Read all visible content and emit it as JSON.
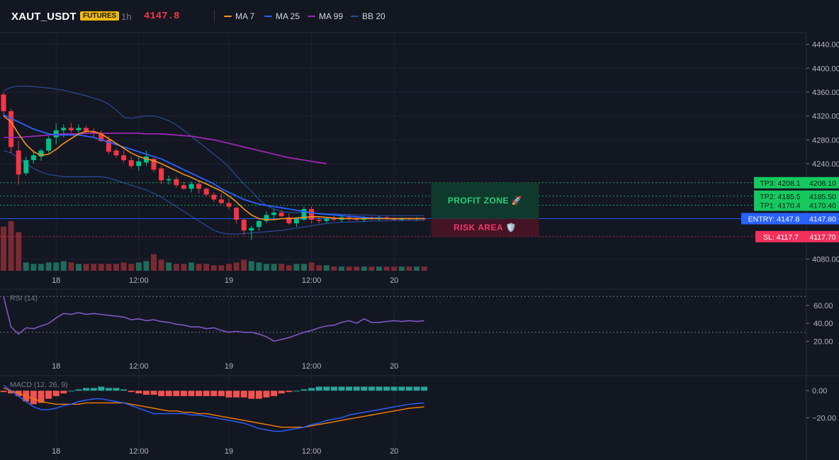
{
  "header": {
    "symbol": "XAUT_USDT",
    "badge": "FUTURES",
    "timeframe": "1h",
    "price": "4147.8",
    "legend": [
      {
        "label": "MA 7",
        "color": "#f7931a"
      },
      {
        "label": "MA 25",
        "color": "#2962ff"
      },
      {
        "label": "MA 99",
        "color": "#9c27b0"
      },
      {
        "label": "BB 20",
        "color": "#2a4a9a"
      }
    ]
  },
  "colors": {
    "up": "#00c087",
    "down": "#f23645",
    "volume_up": "#1e6b5b",
    "volume_down": "#7a2a33",
    "ma7": "#f7931a",
    "ma25": "#2962ff",
    "ma99": "#9c27b0",
    "bb": "#2a4a9a",
    "tp": "#00e676",
    "entry": "#2962ff",
    "sl": "#f23645",
    "rsi": "#7e57c2",
    "macd_line": "#2962ff",
    "signal_line": "#f57c00",
    "hist_pos": "#26a69a",
    "hist_neg": "#ef5350"
  },
  "chart_data": [
    {
      "type": "candlestick",
      "title": "",
      "y_axis_ticks": [
        "4440.00",
        "4400.00",
        "4360.00",
        "4320.00",
        "4280.00",
        "4240.00",
        "4080.00"
      ],
      "ylim": [
        4070,
        4455
      ],
      "x_tick_labels": [
        "18",
        "12:00",
        "19",
        "12:00",
        "20"
      ],
      "candles": [
        [
          4356,
          4360,
          4320,
          4328
        ],
        [
          4328,
          4332,
          4258,
          4268
        ],
        [
          4262,
          4278,
          4205,
          4222
        ],
        [
          4224,
          4252,
          4220,
          4246
        ],
        [
          4246,
          4262,
          4240,
          4254
        ],
        [
          4252,
          4265,
          4245,
          4262
        ],
        [
          4262,
          4286,
          4258,
          4282
        ],
        [
          4284,
          4308,
          4272,
          4296
        ],
        [
          4296,
          4306,
          4284,
          4300
        ],
        [
          4300,
          4308,
          4292,
          4296
        ],
        [
          4296,
          4306,
          4290,
          4300
        ],
        [
          4300,
          4304,
          4292,
          4294
        ],
        [
          4294,
          4300,
          4284,
          4290
        ],
        [
          4290,
          4296,
          4276,
          4278
        ],
        [
          4280,
          4286,
          4256,
          4260
        ],
        [
          4262,
          4266,
          4250,
          4254
        ],
        [
          4254,
          4262,
          4242,
          4246
        ],
        [
          4246,
          4252,
          4232,
          4236
        ],
        [
          4236,
          4252,
          4228,
          4244
        ],
        [
          4242,
          4262,
          4236,
          4252
        ],
        [
          4248,
          4250,
          4226,
          4230
        ],
        [
          4232,
          4236,
          4206,
          4212
        ],
        [
          4212,
          4220,
          4205,
          4214
        ],
        [
          4214,
          4218,
          4200,
          4204
        ],
        [
          4204,
          4210,
          4196,
          4198
        ],
        [
          4198,
          4210,
          4192,
          4206
        ],
        [
          4206,
          4210,
          4190,
          4198
        ],
        [
          4198,
          4200,
          4186,
          4188
        ],
        [
          4188,
          4192,
          4176,
          4180
        ],
        [
          4180,
          4190,
          4172,
          4174
        ],
        [
          4174,
          4182,
          4164,
          4168
        ],
        [
          4166,
          4168,
          4140,
          4146
        ],
        [
          4146,
          4148,
          4120,
          4128
        ],
        [
          4128,
          4136,
          4112,
          4132
        ],
        [
          4134,
          4146,
          4128,
          4144
        ],
        [
          4144,
          4160,
          4140,
          4154
        ],
        [
          4154,
          4164,
          4146,
          4158
        ],
        [
          4158,
          4162,
          4150,
          4152
        ],
        [
          4150,
          4156,
          4138,
          4140
        ],
        [
          4140,
          4150,
          4134,
          4148
        ],
        [
          4146,
          4168,
          4144,
          4164
        ],
        [
          4164,
          4168,
          4140,
          4146
        ],
        [
          4146,
          4152,
          4140,
          4144
        ],
        [
          4144,
          4150,
          4140,
          4148
        ],
        [
          4148,
          4152,
          4144,
          4146
        ],
        [
          4146,
          4152,
          4142,
          4150
        ],
        [
          4150,
          4154,
          4144,
          4148
        ],
        [
          4148,
          4152,
          4144,
          4146
        ],
        [
          4146,
          4152,
          4142,
          4150
        ],
        [
          4150,
          4152,
          4146,
          4148
        ],
        [
          4148,
          4152,
          4144,
          4150
        ],
        [
          4150,
          4152,
          4146,
          4148
        ],
        [
          4148,
          4150,
          4144,
          4146
        ],
        [
          4146,
          4150,
          4144,
          4148
        ],
        [
          4148,
          4150,
          4145,
          4147
        ],
        [
          4147,
          4150,
          4144,
          4148
        ],
        [
          4148,
          4150,
          4145,
          4147.8
        ]
      ],
      "volume": [
        32,
        36,
        28,
        6,
        5,
        5,
        6,
        6,
        7,
        6,
        5,
        5,
        5,
        5,
        5,
        5,
        6,
        5,
        6,
        7,
        12,
        8,
        6,
        5,
        5,
        6,
        5,
        5,
        4,
        4,
        5,
        6,
        8,
        7,
        6,
        5,
        5,
        5,
        4,
        5,
        5,
        6,
        4,
        4,
        3,
        3,
        3,
        3,
        3,
        3,
        3,
        3,
        3,
        3,
        3,
        3,
        3
      ],
      "lines": {
        "ma7": [
          4320,
          4310,
          4290,
          4272,
          4260,
          4254,
          4256,
          4264,
          4274,
          4282,
          4290,
          4294,
          4294,
          4290,
          4282,
          4274,
          4266,
          4258,
          4252,
          4248,
          4245,
          4240,
          4234,
          4228,
          4222,
          4217,
          4211,
          4206,
          4200,
          4194,
          4186,
          4176,
          4164,
          4154,
          4148,
          4146,
          4146,
          4148,
          4148,
          4149,
          4150,
          4151,
          4151,
          4150,
          4149,
          4148,
          4148,
          4148,
          4148,
          4148,
          4148,
          4148,
          4148,
          4148,
          4148,
          4148,
          4148
        ],
        "ma25": [
          4322,
          4316,
          4310,
          4304,
          4298,
          4294,
          4290,
          4288,
          4288,
          4288,
          4288,
          4286,
          4284,
          4280,
          4276,
          4272,
          4268,
          4264,
          4260,
          4256,
          4252,
          4248,
          4242,
          4236,
          4230,
          4224,
          4218,
          4212,
          4206,
          4198,
          4192,
          4186,
          4180,
          4176,
          4172,
          4170,
          4168,
          4166,
          4164,
          4162,
          4160,
          4158,
          4156,
          4155,
          4154,
          4153,
          4152,
          4151,
          4150,
          4149,
          4149,
          4148,
          4148,
          4148,
          4148,
          4148,
          4148
        ],
        "ma99": [
          4284,
          4284,
          4284,
          4285,
          4286,
          4287,
          4288,
          4289,
          4290,
          4290,
          4290,
          4291,
          4291,
          4291,
          4291,
          4291,
          4291,
          4291,
          4291,
          4290,
          4290,
          4290,
          4289,
          4288,
          4287,
          4286,
          4284,
          4282,
          4280,
          4277,
          4274,
          4271,
          4268,
          4265,
          4262,
          4259,
          4256,
          4253,
          4250,
          4248,
          4246,
          4244,
          4242,
          4240
        ],
        "bb_upper": [
          4362,
          4368,
          4370,
          4370,
          4369,
          4368,
          4367,
          4365,
          4363,
          4360,
          4357,
          4354,
          4350,
          4346,
          4340,
          4330,
          4318,
          4316,
          4318,
          4320,
          4320,
          4317,
          4312,
          4305,
          4296,
          4286,
          4276,
          4266,
          4256,
          4246,
          4234,
          4220,
          4206,
          4194,
          4180,
          4170,
          4164,
          4160,
          4158,
          4158,
          4158,
          4157,
          4157,
          4156,
          4156,
          4155,
          4155,
          4154,
          4154,
          4154,
          4153,
          4153,
          4153,
          4153,
          4153,
          4153,
          4153
        ],
        "bb_lower": [
          4262,
          4258,
          4250,
          4240,
          4232,
          4226,
          4222,
          4220,
          4218,
          4218,
          4218,
          4218,
          4218,
          4218,
          4216,
          4212,
          4208,
          4204,
          4200,
          4196,
          4190,
          4184,
          4176,
          4168,
          4160,
          4152,
          4144,
          4136,
          4128,
          4124,
          4122,
          4122,
          4123,
          4124,
          4125,
          4126,
          4127,
          4128,
          4130,
          4132,
          4134,
          4136,
          4138,
          4140,
          4141,
          4142,
          4142,
          4143,
          4143,
          4144,
          4144,
          4144,
          4145,
          4145,
          4145,
          4145,
          4145
        ]
      },
      "levels": [
        {
          "label": "TP3: 4208.1",
          "price": 4208.1,
          "axis_label": "4208.10",
          "kind": "tp"
        },
        {
          "label": "TP2: 4185.5",
          "price": 4185.5,
          "axis_label": "4185.50",
          "kind": "tp"
        },
        {
          "label": "TP1: 4170.4",
          "price": 4170.4,
          "axis_label": "4170.40",
          "kind": "tp"
        },
        {
          "label": "ENTRY: 4147.8",
          "price": 4147.8,
          "axis_label": "4147.80",
          "kind": "entry"
        },
        {
          "label": "SL: 4117.7",
          "price": 4117.7,
          "axis_label": "4117.70",
          "kind": "sl"
        }
      ],
      "zones": {
        "profit": "PROFIT ZONE 🚀",
        "risk": "RISK AREA 🛡️"
      }
    },
    {
      "type": "line",
      "title": "RSI (14)",
      "y_axis_ticks": [
        "60.00",
        "40.00",
        "20.00"
      ],
      "ylim": [
        10,
        75
      ],
      "bands": [
        70,
        30
      ],
      "x_tick_labels": [
        "18",
        "12:00",
        "19",
        "12:00",
        "20"
      ],
      "values": [
        70,
        36,
        28,
        35,
        34,
        37,
        40,
        46,
        51,
        50,
        52,
        50,
        51,
        50,
        49,
        48,
        47,
        44,
        45,
        43,
        44,
        42,
        41,
        39,
        38,
        36,
        36,
        34,
        35,
        32,
        30,
        31,
        30,
        30,
        28,
        25,
        20,
        22,
        24,
        27,
        30,
        32,
        35,
        37,
        38,
        41,
        43,
        40,
        45,
        41,
        41,
        42,
        43,
        42,
        43,
        42,
        43
      ]
    },
    {
      "type": "bar",
      "title": "MACD (12, 26, 9)",
      "y_axis_ticks": [
        "0.00",
        "−20.00"
      ],
      "ylim": [
        -34,
        8
      ],
      "x_tick_labels": [
        "18",
        "12:00",
        "19",
        "12:00",
        "20"
      ],
      "histogram": [
        -1,
        -2,
        -4,
        -8,
        -10,
        -9,
        -6,
        -4,
        -2,
        0,
        1,
        2,
        2,
        3,
        2,
        2,
        1,
        -1,
        -2,
        -3,
        -3,
        -4,
        -4,
        -4,
        -4,
        -4,
        -4,
        -4,
        -4,
        -4,
        -5,
        -5,
        -5,
        -6,
        -6,
        -5,
        -4,
        -2,
        -1,
        0,
        1,
        2,
        3,
        3,
        3,
        3,
        3,
        3,
        3,
        3,
        3,
        3,
        3,
        3,
        3,
        3,
        3
      ],
      "series": [
        {
          "name": "MACD",
          "values": [
            4,
            0,
            -4,
            -8,
            -12,
            -14,
            -14,
            -13,
            -11,
            -10,
            -8,
            -7,
            -6,
            -6,
            -7,
            -8,
            -9,
            -11,
            -13,
            -15,
            -17,
            -17,
            -17,
            -17,
            -17,
            -18,
            -18,
            -19,
            -20,
            -21,
            -22,
            -23,
            -24,
            -26,
            -28,
            -29,
            -30,
            -30,
            -29,
            -28,
            -27,
            -25,
            -24,
            -22,
            -21,
            -20,
            -18,
            -17,
            -16,
            -15,
            -14,
            -13,
            -12,
            -11,
            -10,
            -9.5,
            -9
          ]
        },
        {
          "name": "Signal",
          "values": [
            2,
            0,
            -2,
            -4,
            -6,
            -8,
            -9,
            -10,
            -10,
            -10,
            -10,
            -9,
            -9,
            -9,
            -9,
            -9,
            -9,
            -10,
            -11,
            -12,
            -13,
            -14,
            -15,
            -15,
            -16,
            -16,
            -17,
            -17,
            -18,
            -19,
            -20,
            -21,
            -22,
            -23,
            -24,
            -25,
            -26,
            -27,
            -27,
            -27,
            -27,
            -26,
            -25,
            -24,
            -23,
            -22,
            -21,
            -20,
            -19,
            -18,
            -17,
            -16,
            -15,
            -14,
            -13,
            -12.5,
            -12
          ]
        }
      ]
    }
  ]
}
